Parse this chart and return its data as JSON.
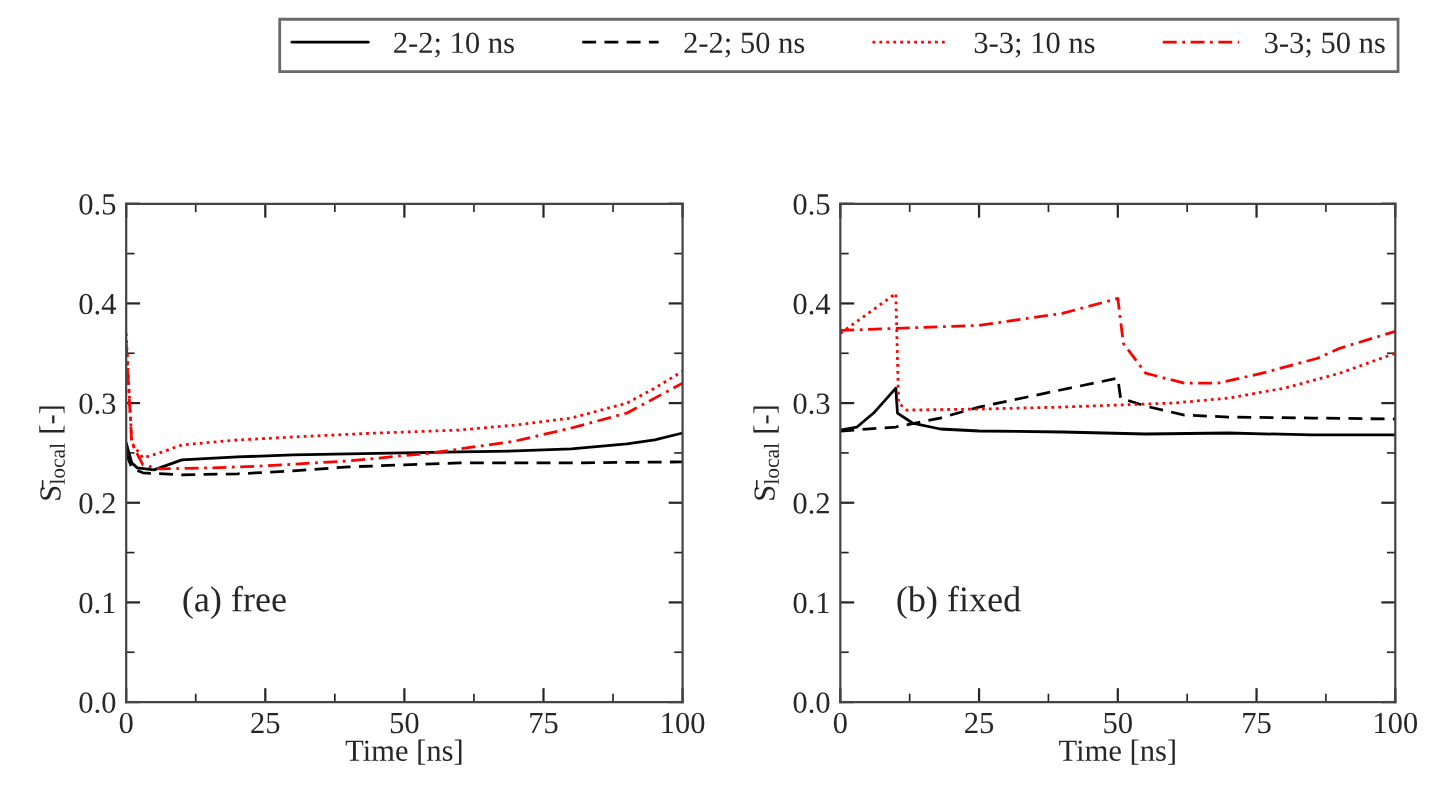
{
  "chart_data": [
    {
      "type": "line",
      "xlabel": "Time [ns]",
      "ylabel": "S̄$_{local}$ [-]",
      "annotations": [
        "(a) free"
      ],
      "legend": "top",
      "grid": false,
      "xlim": [
        0,
        100
      ],
      "ylim": [
        0.0,
        0.5
      ],
      "xticks": [
        0,
        25,
        50,
        75,
        100
      ],
      "yticks": [
        {
          "value": 0.0,
          "label": "0.0"
        },
        0.1,
        0.2,
        0.3,
        0.4,
        0.5
      ],
      "series": [
        {
          "name": "2-2; 10 ns",
          "color": "#000000",
          "line_style": "solid",
          "x": [
            0,
            1,
            2,
            5,
            10,
            20,
            30,
            40,
            50,
            60,
            70,
            80,
            90,
            95,
            100
          ],
          "values": [
            0.26,
            0.24,
            0.235,
            0.233,
            0.243,
            0.246,
            0.248,
            0.249,
            0.25,
            0.251,
            0.252,
            0.254,
            0.259,
            0.263,
            0.27
          ]
        },
        {
          "name": "2-2; 50 ns",
          "color": "#000000",
          "line_style": "dashed",
          "x": [
            0,
            1,
            3,
            10,
            20,
            30,
            40,
            50,
            60,
            80,
            100
          ],
          "values": [
            0.25,
            0.235,
            0.23,
            0.228,
            0.229,
            0.232,
            0.236,
            0.238,
            0.24,
            0.24,
            0.241
          ]
        },
        {
          "name": "3-3; 10 ns",
          "color": "#ff0000",
          "line_style": "dotted",
          "x": [
            0,
            1,
            3,
            6,
            10,
            20,
            30,
            45,
            60,
            70,
            80,
            90,
            95,
            100
          ],
          "values": [
            0.37,
            0.26,
            0.245,
            0.25,
            0.258,
            0.263,
            0.266,
            0.27,
            0.273,
            0.278,
            0.285,
            0.3,
            0.315,
            0.332
          ]
        },
        {
          "name": "3-3; 50 ns",
          "color": "#ff0000",
          "line_style": "dashdot",
          "x": [
            0,
            1,
            3,
            6,
            15,
            25,
            40,
            55,
            70,
            80,
            90,
            95,
            100
          ],
          "values": [
            0.36,
            0.26,
            0.238,
            0.234,
            0.235,
            0.237,
            0.242,
            0.25,
            0.262,
            0.275,
            0.29,
            0.305,
            0.32
          ]
        }
      ]
    },
    {
      "type": "line",
      "xlabel": "Time [ns]",
      "ylabel": "S̄$_{local}$ [-]",
      "annotations": [
        "(b) fixed"
      ],
      "grid": false,
      "xlim": [
        0,
        100
      ],
      "ylim": [
        0.0,
        0.5
      ],
      "xticks": [
        0,
        25,
        50,
        75,
        100
      ],
      "yticks": [
        {
          "value": 0.0,
          "label": "0.0"
        },
        0.1,
        0.2,
        0.3,
        0.4,
        0.5
      ],
      "series": [
        {
          "color": "#000000",
          "line_style": "solid",
          "x": [
            0,
            3,
            6,
            10,
            10.3,
            13,
            18,
            25,
            40,
            55,
            70,
            85,
            100
          ],
          "values": [
            0.273,
            0.276,
            0.29,
            0.315,
            0.29,
            0.28,
            0.274,
            0.272,
            0.271,
            0.269,
            0.27,
            0.268,
            0.268
          ]
        },
        {
          "color": "#000000",
          "line_style": "dashed",
          "x": [
            0,
            10,
            18,
            25,
            37,
            50,
            50.5,
            55,
            62,
            70,
            85,
            100
          ],
          "values": [
            0.272,
            0.276,
            0.285,
            0.296,
            0.31,
            0.325,
            0.305,
            0.297,
            0.288,
            0.286,
            0.285,
            0.284
          ]
        },
        {
          "color": "#ff0000",
          "line_style": "dotted",
          "x": [
            0,
            10,
            10.5,
            12,
            25,
            40,
            50,
            60,
            70,
            80,
            90,
            100
          ],
          "values": [
            0.37,
            0.41,
            0.3,
            0.293,
            0.294,
            0.296,
            0.298,
            0.3,
            0.305,
            0.315,
            0.33,
            0.35
          ]
        },
        {
          "color": "#ff0000",
          "line_style": "dashdot",
          "x": [
            0,
            10,
            25,
            40,
            50,
            51,
            55,
            62,
            68,
            76,
            86,
            90,
            100
          ],
          "values": [
            0.373,
            0.375,
            0.378,
            0.39,
            0.405,
            0.36,
            0.33,
            0.32,
            0.32,
            0.33,
            0.345,
            0.355,
            0.372
          ]
        }
      ]
    }
  ]
}
